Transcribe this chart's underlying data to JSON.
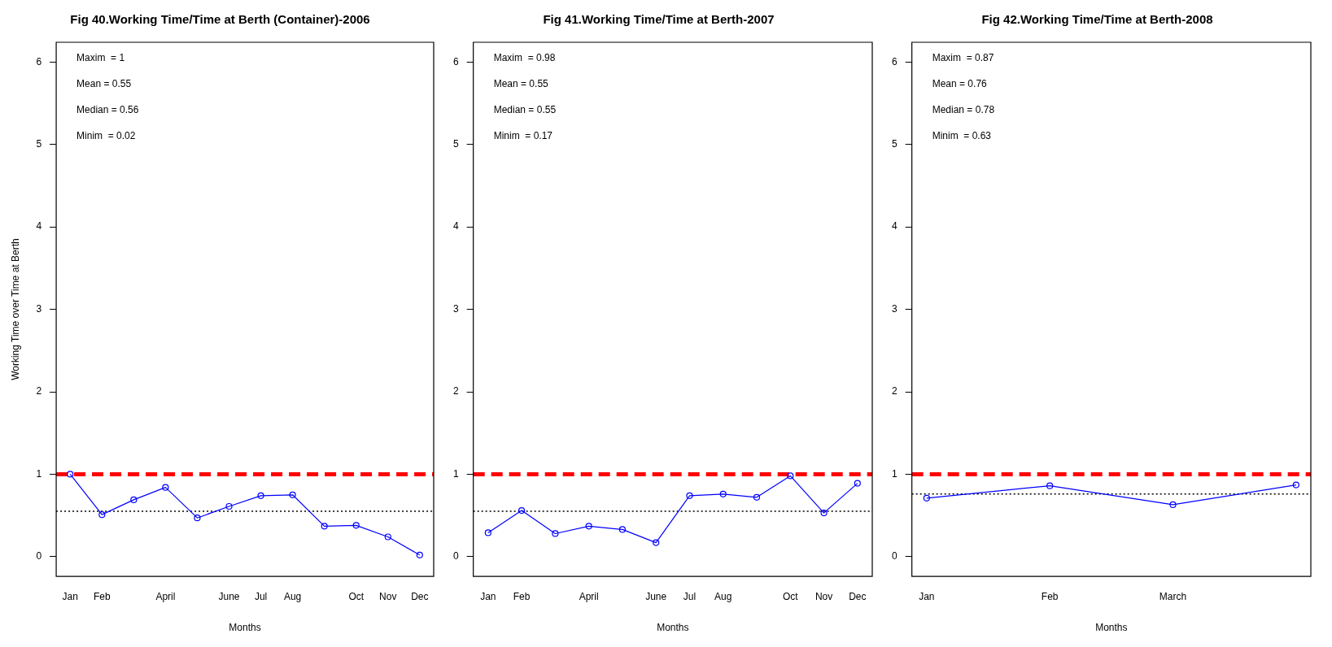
{
  "chart_data": [
    {
      "type": "line",
      "title": "Fig 40.Working Time/Time at Berth (Container)-2006",
      "xlabel": "Months",
      "ylabel": "Working Time over Time at Berth",
      "categories": [
        "Jan",
        "Feb",
        null,
        "April",
        null,
        "June",
        "Jul",
        "Aug",
        null,
        "Oct",
        "Nov",
        "Dec"
      ],
      "series": [
        {
          "color": "#0000ff",
          "values": [
            1.0,
            0.51,
            0.69,
            0.84,
            0.47,
            0.61,
            0.74,
            0.75,
            0.37,
            0.38,
            0.24,
            0.02
          ]
        }
      ],
      "ylim": [
        -0.24,
        6.24
      ],
      "yticks": [
        0,
        1,
        2,
        3,
        4,
        5,
        6
      ],
      "grid": false,
      "legend": false,
      "marker": "circle",
      "line_style": "solid",
      "ref_lines": [
        {
          "axis": "y",
          "value": 1,
          "color": "#ff0000",
          "line_style": "dashed"
        },
        {
          "axis": "y",
          "value": 0.55,
          "color": "#000000",
          "line_style": "dotted"
        }
      ],
      "annotations": [
        "Maxim  = 1",
        "Mean = 0.55",
        "Median = 0.56",
        "Minim  = 0.02"
      ]
    },
    {
      "type": "line",
      "title": "Fig 41.Working Time/Time at Berth-2007",
      "xlabel": "Months",
      "categories": [
        "Jan",
        "Feb",
        null,
        "April",
        null,
        "June",
        "Jul",
        "Aug",
        null,
        "Oct",
        "Nov",
        "Dec"
      ],
      "series": [
        {
          "color": "#0000ff",
          "values": [
            0.29,
            0.56,
            0.28,
            0.37,
            0.33,
            0.17,
            0.74,
            0.76,
            0.72,
            0.98,
            0.53,
            0.89
          ]
        }
      ],
      "ylim": [
        -0.24,
        6.24
      ],
      "yticks": [
        0,
        1,
        2,
        3,
        4,
        5,
        6
      ],
      "grid": false,
      "legend": false,
      "marker": "circle",
      "line_style": "solid",
      "ref_lines": [
        {
          "axis": "y",
          "value": 1,
          "color": "#ff0000",
          "line_style": "dashed"
        },
        {
          "axis": "y",
          "value": 0.55,
          "color": "#000000",
          "line_style": "dotted"
        }
      ],
      "annotations": [
        "Maxim  = 0.98",
        "Mean = 0.55",
        "Median = 0.55",
        "Minim  = 0.17"
      ]
    },
    {
      "type": "line",
      "title": "Fig 42.Working Time/Time at Berth-2008",
      "xlabel": "Months",
      "categories": [
        "Jan",
        "Feb",
        "March",
        null
      ],
      "series": [
        {
          "color": "#0000ff",
          "values": [
            0.71,
            0.86,
            0.63,
            0.87
          ]
        }
      ],
      "ylim": [
        -0.24,
        6.24
      ],
      "yticks": [
        0,
        1,
        2,
        3,
        4,
        5,
        6
      ],
      "grid": false,
      "legend": false,
      "marker": "circle",
      "line_style": "solid",
      "ref_lines": [
        {
          "axis": "y",
          "value": 1,
          "color": "#ff0000",
          "line_style": "dashed"
        },
        {
          "axis": "y",
          "value": 0.76,
          "color": "#000000",
          "line_style": "dotted"
        }
      ],
      "annotations": [
        "Maxim  = 0.87",
        "Mean = 0.76",
        "Median = 0.78",
        "Minim  = 0.63"
      ]
    }
  ]
}
